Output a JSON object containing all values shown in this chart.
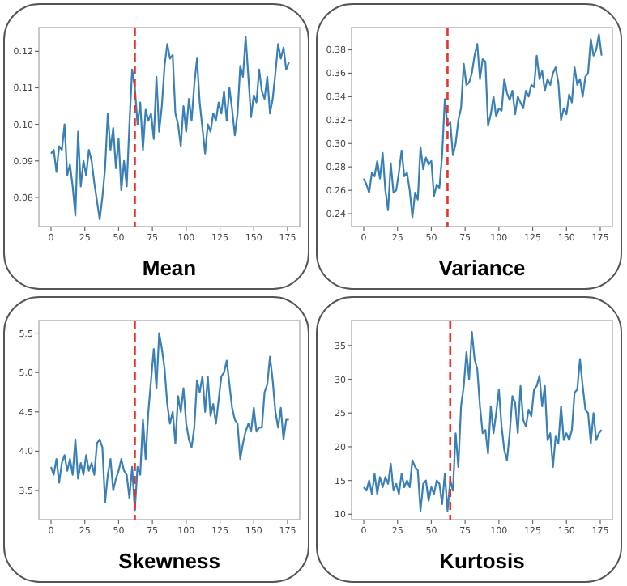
{
  "chart_data": [
    {
      "type": "line",
      "title": "Mean",
      "xlim": [
        -9,
        184
      ],
      "xticks": [
        0,
        25,
        50,
        75,
        100,
        125,
        150,
        175
      ],
      "ylim": [
        0.072,
        0.1265
      ],
      "yticks": [
        {
          "value": 0.08,
          "label": "0.08"
        },
        {
          "value": 0.09,
          "label": "0.09"
        },
        {
          "value": 0.1,
          "label": "0.10"
        },
        {
          "value": 0.11,
          "label": "0.11"
        },
        {
          "value": 0.12,
          "label": "0.12"
        }
      ],
      "grid": false,
      "ref_lines": [
        {
          "axis": "x",
          "value": 62,
          "color": "#e8322b",
          "line_style": "dashed"
        }
      ],
      "series": [
        {
          "color": "#3a7fb5",
          "x": [
            0,
            2,
            4,
            6,
            8,
            10,
            12,
            14,
            16,
            18,
            20,
            22,
            24,
            26,
            28,
            30,
            32,
            34,
            36,
            38,
            40,
            42,
            44,
            46,
            48,
            50,
            52,
            54,
            56,
            58,
            60,
            62,
            64,
            66,
            68,
            70,
            72,
            74,
            76,
            78,
            80,
            82,
            84,
            86,
            88,
            90,
            92,
            94,
            96,
            98,
            100,
            102,
            104,
            106,
            108,
            110,
            112,
            114,
            116,
            118,
            120,
            122,
            124,
            126,
            128,
            130,
            132,
            134,
            136,
            138,
            140,
            142,
            144,
            146,
            148,
            150,
            152,
            154,
            156,
            158,
            160,
            162,
            164,
            166,
            168,
            170,
            172,
            174,
            176
          ],
          "values": [
            0.092,
            0.093,
            0.087,
            0.094,
            0.093,
            0.1,
            0.086,
            0.089,
            0.083,
            0.075,
            0.098,
            0.083,
            0.09,
            0.086,
            0.093,
            0.09,
            0.084,
            0.079,
            0.074,
            0.08,
            0.088,
            0.103,
            0.093,
            0.099,
            0.088,
            0.096,
            0.082,
            0.09,
            0.083,
            0.1,
            0.115,
            0.11,
            0.1,
            0.106,
            0.093,
            0.104,
            0.101,
            0.103,
            0.096,
            0.113,
            0.098,
            0.105,
            0.116,
            0.122,
            0.118,
            0.119,
            0.103,
            0.1,
            0.094,
            0.105,
            0.098,
            0.107,
            0.101,
            0.111,
            0.118,
            0.106,
            0.099,
            0.092,
            0.1,
            0.098,
            0.103,
            0.101,
            0.106,
            0.103,
            0.109,
            0.101,
            0.11,
            0.104,
            0.097,
            0.103,
            0.116,
            0.113,
            0.124,
            0.113,
            0.102,
            0.108,
            0.106,
            0.115,
            0.109,
            0.107,
            0.113,
            0.103,
            0.107,
            0.114,
            0.122,
            0.118,
            0.121,
            0.115,
            0.117
          ]
        }
      ]
    },
    {
      "type": "line",
      "title": "Variance",
      "xlim": [
        -9,
        184
      ],
      "xticks": [
        0,
        25,
        50,
        75,
        100,
        125,
        150,
        175
      ],
      "ylim": [
        0.229,
        0.399
      ],
      "yticks": [
        {
          "value": 0.24,
          "label": "0.24"
        },
        {
          "value": 0.26,
          "label": "0.26"
        },
        {
          "value": 0.28,
          "label": "0.28"
        },
        {
          "value": 0.3,
          "label": "0.30"
        },
        {
          "value": 0.32,
          "label": "0.32"
        },
        {
          "value": 0.34,
          "label": "0.34"
        },
        {
          "value": 0.36,
          "label": "0.36"
        },
        {
          "value": 0.38,
          "label": "0.38"
        }
      ],
      "grid": false,
      "ref_lines": [
        {
          "axis": "x",
          "value": 62,
          "color": "#e8322b",
          "line_style": "dashed"
        }
      ],
      "series": [
        {
          "color": "#3a7fb5",
          "x": [
            0,
            2,
            4,
            6,
            8,
            10,
            12,
            14,
            16,
            18,
            20,
            22,
            24,
            26,
            28,
            30,
            32,
            34,
            36,
            38,
            40,
            42,
            44,
            46,
            48,
            50,
            52,
            54,
            56,
            58,
            60,
            62,
            64,
            66,
            68,
            70,
            72,
            74,
            76,
            78,
            80,
            82,
            84,
            86,
            88,
            90,
            92,
            94,
            96,
            98,
            100,
            102,
            104,
            106,
            108,
            110,
            112,
            114,
            116,
            118,
            120,
            122,
            124,
            126,
            128,
            130,
            132,
            134,
            136,
            138,
            140,
            142,
            144,
            146,
            148,
            150,
            152,
            154,
            156,
            158,
            160,
            162,
            164,
            166,
            168,
            170,
            172,
            174,
            176
          ],
          "values": [
            0.27,
            0.265,
            0.258,
            0.275,
            0.272,
            0.285,
            0.27,
            0.292,
            0.26,
            0.243,
            0.283,
            0.258,
            0.26,
            0.275,
            0.294,
            0.272,
            0.275,
            0.26,
            0.237,
            0.258,
            0.252,
            0.297,
            0.278,
            0.288,
            0.282,
            0.285,
            0.255,
            0.265,
            0.262,
            0.29,
            0.338,
            0.315,
            0.318,
            0.29,
            0.3,
            0.32,
            0.33,
            0.368,
            0.35,
            0.352,
            0.36,
            0.375,
            0.385,
            0.355,
            0.372,
            0.37,
            0.315,
            0.325,
            0.34,
            0.323,
            0.33,
            0.328,
            0.355,
            0.343,
            0.337,
            0.345,
            0.325,
            0.34,
            0.335,
            0.33,
            0.345,
            0.34,
            0.35,
            0.348,
            0.375,
            0.355,
            0.362,
            0.345,
            0.355,
            0.35,
            0.36,
            0.365,
            0.352,
            0.32,
            0.33,
            0.325,
            0.342,
            0.335,
            0.365,
            0.35,
            0.355,
            0.34,
            0.357,
            0.36,
            0.389,
            0.375,
            0.38,
            0.393,
            0.375
          ]
        }
      ]
    },
    {
      "type": "line",
      "title": "Skewness",
      "xlim": [
        -9,
        184
      ],
      "xticks": [
        0,
        25,
        50,
        75,
        100,
        125,
        150,
        175
      ],
      "ylim": [
        3.13,
        5.66
      ],
      "yticks": [
        {
          "value": 3.5,
          "label": "3.5"
        },
        {
          "value": 4,
          "label": "4.0"
        },
        {
          "value": 4.5,
          "label": "4.5"
        },
        {
          "value": 5,
          "label": "5.0"
        },
        {
          "value": 5.5,
          "label": "5.5"
        }
      ],
      "grid": false,
      "ref_lines": [
        {
          "axis": "x",
          "value": 62,
          "color": "#e8322b",
          "line_style": "dashed"
        }
      ],
      "series": [
        {
          "color": "#3a7fb5",
          "x": [
            0,
            2,
            4,
            6,
            8,
            10,
            12,
            14,
            16,
            18,
            20,
            22,
            24,
            26,
            28,
            30,
            32,
            34,
            36,
            38,
            40,
            42,
            44,
            46,
            48,
            50,
            52,
            54,
            56,
            58,
            60,
            62,
            64,
            66,
            68,
            70,
            72,
            74,
            76,
            78,
            80,
            82,
            84,
            86,
            88,
            90,
            92,
            94,
            96,
            98,
            100,
            102,
            104,
            106,
            108,
            110,
            112,
            114,
            116,
            118,
            120,
            122,
            124,
            126,
            128,
            130,
            132,
            134,
            136,
            138,
            140,
            142,
            144,
            146,
            148,
            150,
            152,
            154,
            156,
            158,
            160,
            162,
            164,
            166,
            168,
            170,
            172,
            174,
            176
          ],
          "values": [
            3.8,
            3.7,
            3.9,
            3.6,
            3.85,
            3.95,
            3.75,
            3.9,
            3.7,
            4.15,
            3.65,
            3.85,
            3.7,
            3.95,
            3.75,
            3.85,
            3.7,
            4.1,
            4.15,
            4.05,
            3.35,
            3.7,
            3.9,
            3.5,
            3.65,
            3.75,
            3.9,
            3.75,
            3.7,
            3.4,
            3.8,
            3.25,
            3.8,
            3.7,
            4.4,
            3.9,
            4.5,
            4.9,
            5.3,
            4.8,
            5.5,
            5.3,
            5.05,
            4.6,
            4.35,
            4.5,
            4.1,
            4.7,
            4.5,
            4.8,
            4.35,
            4.15,
            4.05,
            4.3,
            4.9,
            4.75,
            4.95,
            4.5,
            4.95,
            4.45,
            4.6,
            4.35,
            4.65,
            4.95,
            5,
            5.15,
            4.85,
            4.55,
            4.4,
            4.35,
            3.9,
            4.1,
            4.25,
            4.35,
            4.25,
            4.55,
            4.25,
            4.3,
            4.3,
            4.75,
            4.85,
            5.2,
            4.9,
            4.5,
            4.3,
            4.55,
            4.15,
            4.4,
            4.4
          ]
        }
      ]
    },
    {
      "type": "line",
      "title": "Kurtosis",
      "xlim": [
        -9,
        184
      ],
      "xticks": [
        0,
        25,
        50,
        75,
        100,
        125,
        150,
        175
      ],
      "ylim": [
        9.2,
        38.7
      ],
      "yticks": [
        10,
        15,
        20,
        25,
        30,
        35
      ],
      "grid": false,
      "ref_lines": [
        {
          "axis": "x",
          "value": 64,
          "color": "#e8322b",
          "line_style": "dashed"
        }
      ],
      "series": [
        {
          "color": "#3a7fb5",
          "x": [
            0,
            2,
            4,
            6,
            8,
            10,
            12,
            14,
            16,
            18,
            20,
            22,
            24,
            26,
            28,
            30,
            32,
            34,
            36,
            38,
            40,
            42,
            44,
            46,
            48,
            50,
            52,
            54,
            56,
            58,
            60,
            62,
            64,
            66,
            68,
            70,
            72,
            74,
            76,
            78,
            80,
            82,
            84,
            86,
            88,
            90,
            92,
            94,
            96,
            98,
            100,
            102,
            104,
            106,
            108,
            110,
            112,
            114,
            116,
            118,
            120,
            122,
            124,
            126,
            128,
            130,
            132,
            134,
            136,
            138,
            140,
            142,
            144,
            146,
            148,
            150,
            152,
            154,
            156,
            158,
            160,
            162,
            164,
            166,
            168,
            170,
            172,
            174,
            176
          ],
          "values": [
            14,
            13.5,
            15,
            13,
            16,
            13,
            15.5,
            14,
            15.5,
            14.5,
            17.5,
            13.5,
            14.5,
            13,
            16,
            14,
            15,
            14,
            18,
            17,
            16.5,
            10.5,
            14.5,
            15,
            12,
            14,
            13,
            15,
            14.5,
            11.5,
            16,
            10.5,
            15,
            13.5,
            22,
            17,
            26,
            29,
            34,
            30,
            37,
            33,
            31.5,
            26,
            22,
            22.5,
            19,
            26,
            22,
            25,
            28.5,
            23,
            19.5,
            18,
            22,
            27.5,
            26.5,
            22,
            29,
            24,
            23,
            25.5,
            24.5,
            28.5,
            29,
            30.5,
            26,
            29,
            21,
            22,
            17,
            21.5,
            20.5,
            26,
            21,
            22,
            21,
            22.5,
            28,
            28.5,
            33,
            29,
            25.5,
            25,
            20.5,
            25,
            21,
            22,
            22.5
          ]
        }
      ]
    }
  ]
}
